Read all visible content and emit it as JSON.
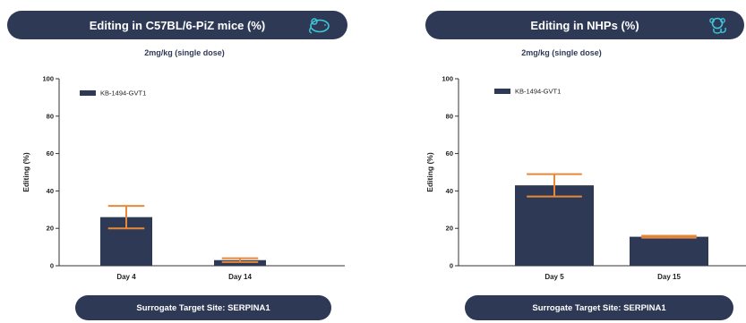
{
  "colors": {
    "navy": "#2e3a55",
    "bar": "#2e3a55",
    "error": "#e8893a",
    "accent_icon": "#3ec7d9"
  },
  "panels": [
    {
      "title": "Editing in C57BL/6-PiZ mice (%)",
      "icon": "mouse-icon",
      "subtitle": "2mg/kg (single dose)",
      "footer": "Surrogate Target Site: SERPINA1"
    },
    {
      "title": "Editing in NHPs (%)",
      "icon": "monkey-icon",
      "subtitle": "2mg/kg (single dose)",
      "footer": "Surrogate Target Site: SERPINA1"
    }
  ],
  "chart_data": [
    {
      "type": "bar",
      "categories": [
        "Day 4",
        "Day 14"
      ],
      "series": [
        {
          "name": "KB-1494-GVT1",
          "values": [
            26,
            3
          ],
          "error_low": [
            20,
            2
          ],
          "error_high": [
            32,
            4
          ]
        }
      ],
      "ylabel": "Editing (%)",
      "ylim": [
        0,
        100
      ],
      "yticks": [
        0,
        20,
        40,
        60,
        80,
        100
      ],
      "legend": "top-left"
    },
    {
      "type": "bar",
      "categories": [
        "Day 5",
        "Day 15"
      ],
      "series": [
        {
          "name": "KB-1494-GVT1",
          "values": [
            43,
            15.5
          ],
          "error_low": [
            37,
            15
          ],
          "error_high": [
            49,
            16
          ]
        }
      ],
      "ylabel": "Editing (%)",
      "ylim": [
        0,
        100
      ],
      "yticks": [
        0,
        20,
        40,
        60,
        80,
        100
      ],
      "legend": "top-left"
    }
  ]
}
